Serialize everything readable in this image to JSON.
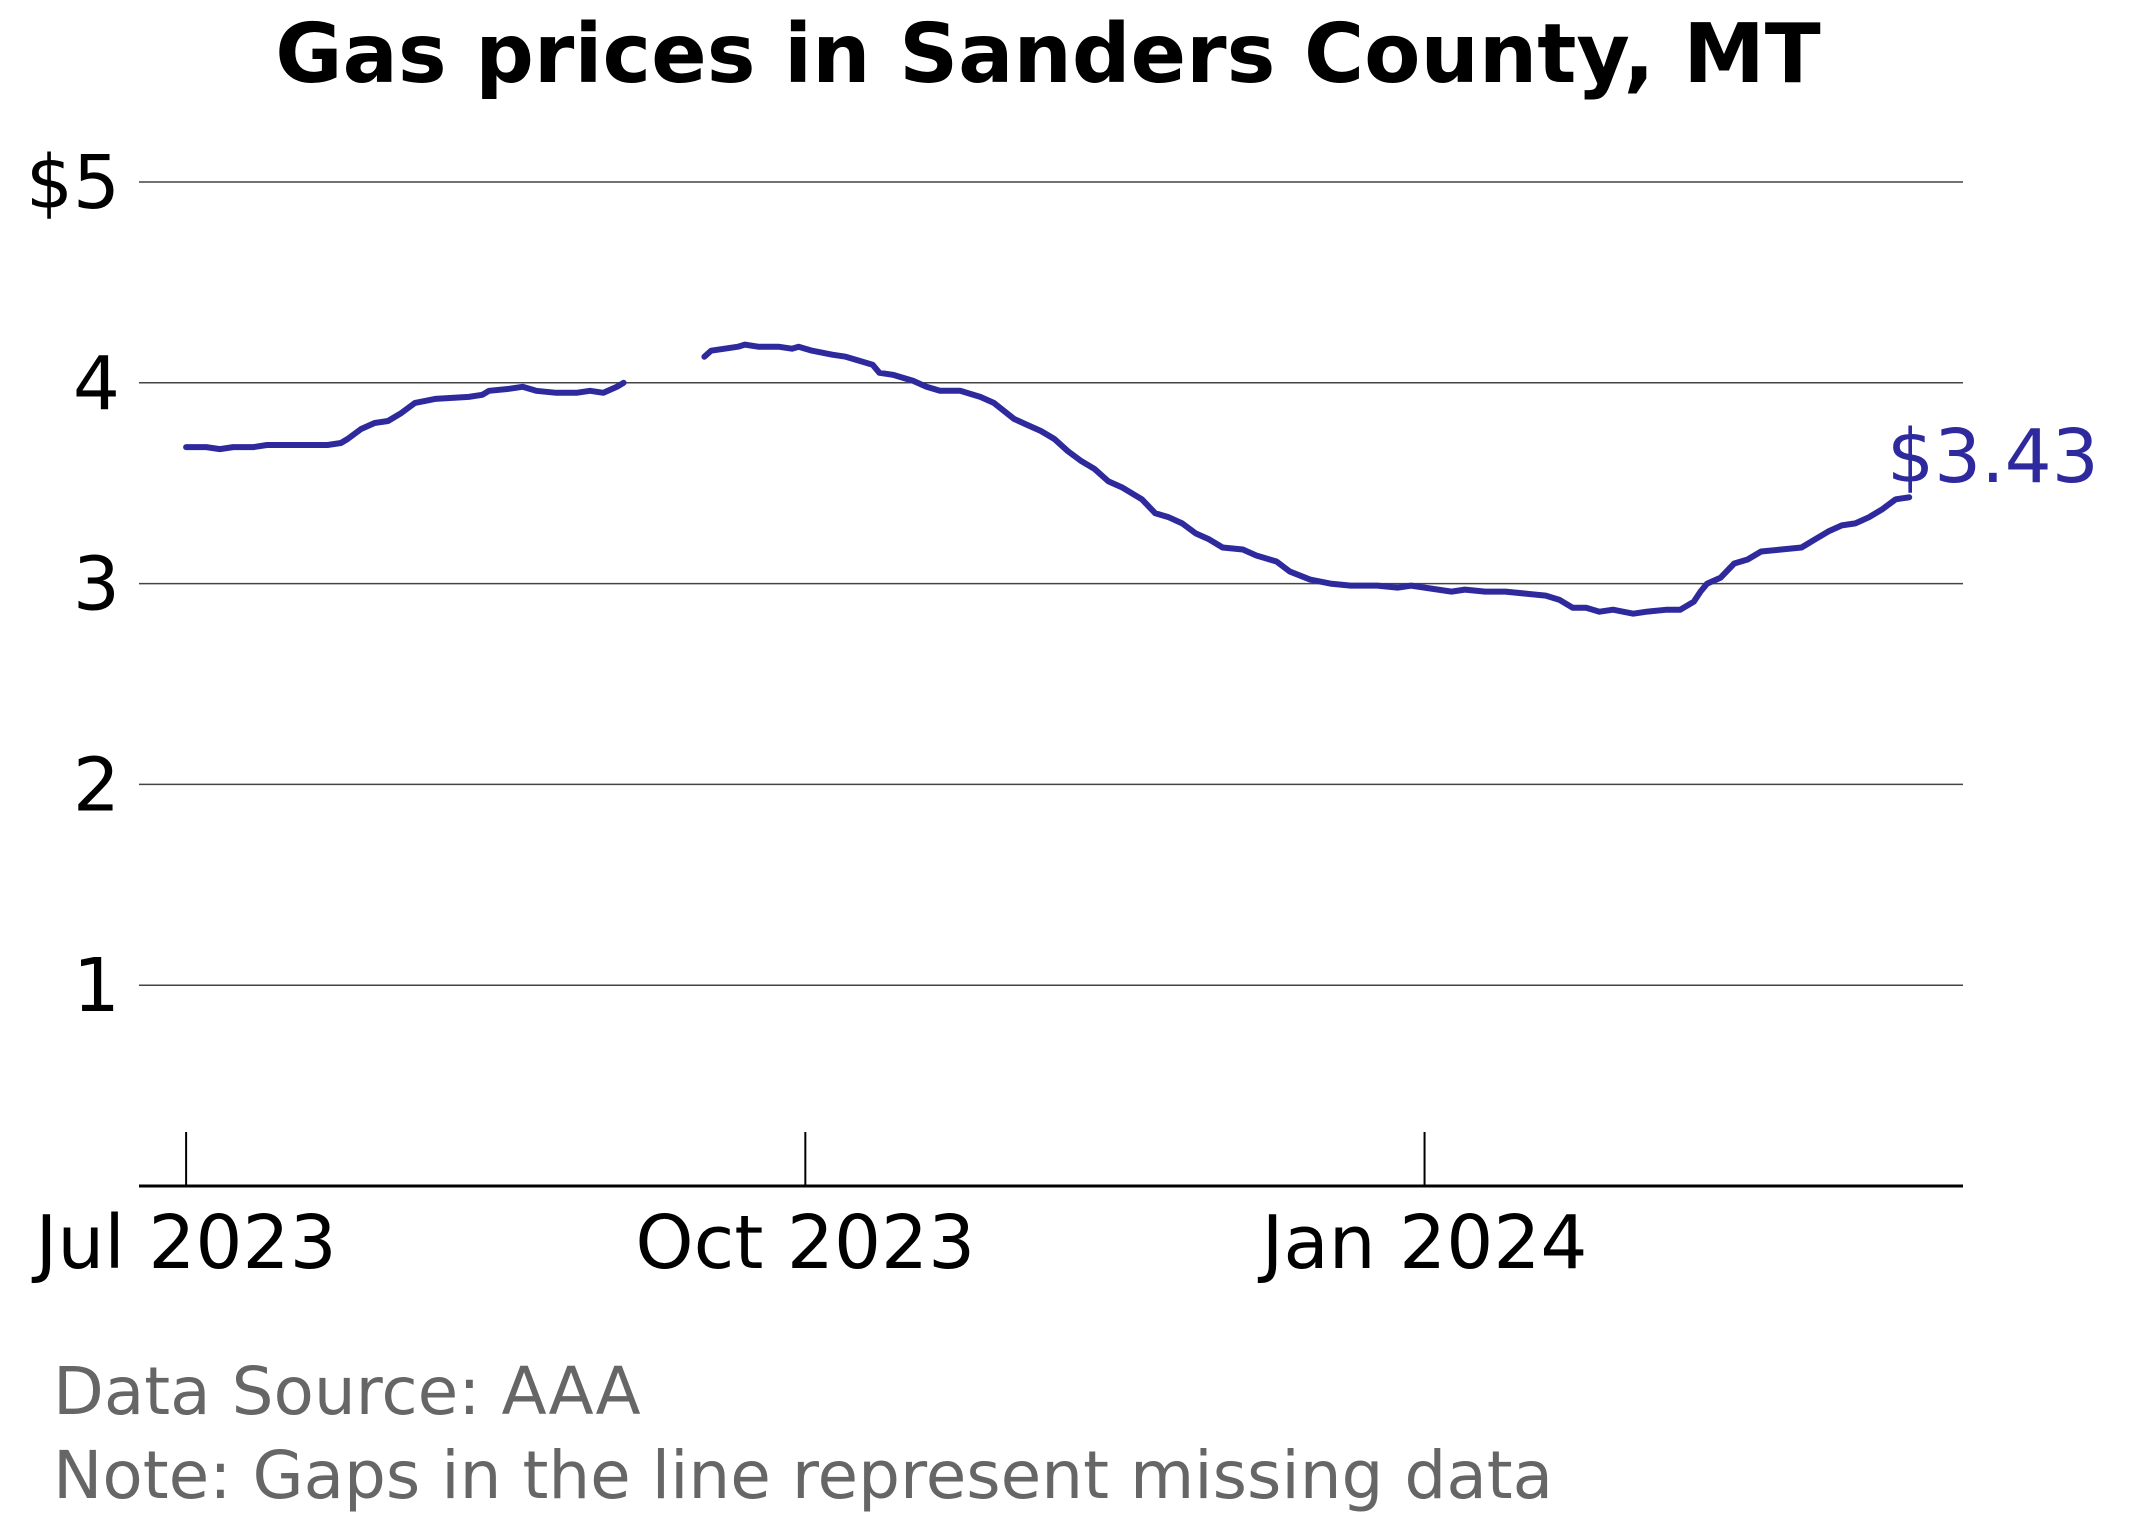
{
  "chart_data": {
    "type": "line",
    "title": "Gas prices in Sanders County, MT",
    "xlabel": "",
    "ylabel": "",
    "ylim": [
      0,
      5
    ],
    "xlim": [
      "2023-06-24",
      "2024-03-21"
    ],
    "y_ticks": [
      {
        "value": 1,
        "label": "1"
      },
      {
        "value": 2,
        "label": "2"
      },
      {
        "value": 3,
        "label": "3"
      },
      {
        "value": 4,
        "label": "4"
      },
      {
        "value": 5,
        "label": "$5"
      }
    ],
    "x_ticks": [
      {
        "date": "2023-07-01",
        "label": "Jul 2023"
      },
      {
        "date": "2023-10-01",
        "label": "Oct 2023"
      },
      {
        "date": "2024-01-01",
        "label": "Jan 2024"
      }
    ],
    "grid": "horizontal",
    "end_label": "$3.43",
    "notes": [
      "Data Source: AAA",
      "Note: Gaps in the line represent missing data"
    ],
    "colors": {
      "line": "#2e2a9e",
      "grid": "#444444",
      "axis": "#000000",
      "note": "#666666"
    },
    "series": [
      {
        "segments": [
          [
            [
              "2023-07-01",
              3.68
            ],
            [
              "2023-07-04",
              3.68
            ],
            [
              "2023-07-06",
              3.67
            ],
            [
              "2023-07-08",
              3.68
            ],
            [
              "2023-07-11",
              3.68
            ],
            [
              "2023-07-13",
              3.69
            ],
            [
              "2023-07-16",
              3.69
            ],
            [
              "2023-07-19",
              3.69
            ],
            [
              "2023-07-22",
              3.69
            ],
            [
              "2023-07-24",
              3.7
            ],
            [
              "2023-07-25",
              3.72
            ],
            [
              "2023-07-27",
              3.77
            ],
            [
              "2023-07-29",
              3.8
            ],
            [
              "2023-07-31",
              3.81
            ],
            [
              "2023-08-02",
              3.85
            ],
            [
              "2023-08-04",
              3.9
            ],
            [
              "2023-08-07",
              3.92
            ],
            [
              "2023-08-12",
              3.93
            ],
            [
              "2023-08-14",
              3.94
            ],
            [
              "2023-08-15",
              3.96
            ],
            [
              "2023-08-18",
              3.97
            ],
            [
              "2023-08-20",
              3.98
            ],
            [
              "2023-08-22",
              3.96
            ],
            [
              "2023-08-25",
              3.95
            ],
            [
              "2023-08-28",
              3.95
            ],
            [
              "2023-08-30",
              3.96
            ],
            [
              "2023-09-01",
              3.95
            ],
            [
              "2023-09-03",
              3.98
            ],
            [
              "2023-09-04",
              4.0
            ]
          ],
          [
            [
              "2023-09-16",
              4.13
            ],
            [
              "2023-09-17",
              4.16
            ],
            [
              "2023-09-19",
              4.17
            ],
            [
              "2023-09-21",
              4.18
            ],
            [
              "2023-09-22",
              4.19
            ],
            [
              "2023-09-24",
              4.18
            ],
            [
              "2023-09-27",
              4.18
            ],
            [
              "2023-09-29",
              4.17
            ],
            [
              "2023-09-30",
              4.18
            ],
            [
              "2023-10-02",
              4.16
            ],
            [
              "2023-10-05",
              4.14
            ],
            [
              "2023-10-07",
              4.13
            ],
            [
              "2023-10-09",
              4.11
            ],
            [
              "2023-10-11",
              4.09
            ],
            [
              "2023-10-12",
              4.05
            ],
            [
              "2023-10-14",
              4.04
            ],
            [
              "2023-10-17",
              4.01
            ],
            [
              "2023-10-19",
              3.98
            ],
            [
              "2023-10-21",
              3.96
            ],
            [
              "2023-10-24",
              3.96
            ],
            [
              "2023-10-27",
              3.93
            ],
            [
              "2023-10-29",
              3.9
            ],
            [
              "2023-11-01",
              3.82
            ],
            [
              "2023-11-03",
              3.79
            ],
            [
              "2023-11-05",
              3.76
            ],
            [
              "2023-11-07",
              3.72
            ],
            [
              "2023-11-09",
              3.66
            ],
            [
              "2023-11-11",
              3.61
            ],
            [
              "2023-11-13",
              3.57
            ],
            [
              "2023-11-15",
              3.51
            ],
            [
              "2023-11-17",
              3.48
            ],
            [
              "2023-11-20",
              3.42
            ],
            [
              "2023-11-22",
              3.35
            ],
            [
              "2023-11-24",
              3.33
            ],
            [
              "2023-11-26",
              3.3
            ],
            [
              "2023-11-28",
              3.25
            ],
            [
              "2023-11-30",
              3.22
            ],
            [
              "2023-12-02",
              3.18
            ],
            [
              "2023-12-05",
              3.17
            ],
            [
              "2023-12-07",
              3.14
            ],
            [
              "2023-12-10",
              3.11
            ],
            [
              "2023-12-12",
              3.06
            ],
            [
              "2023-12-15",
              3.02
            ],
            [
              "2023-12-18",
              3.0
            ],
            [
              "2023-12-21",
              2.99
            ],
            [
              "2023-12-25",
              2.99
            ],
            [
              "2023-12-28",
              2.98
            ],
            [
              "2023-12-30",
              2.99
            ],
            [
              "2024-01-01",
              2.98
            ],
            [
              "2024-01-03",
              2.97
            ],
            [
              "2024-01-05",
              2.96
            ],
            [
              "2024-01-07",
              2.97
            ],
            [
              "2024-01-10",
              2.96
            ],
            [
              "2024-01-13",
              2.96
            ],
            [
              "2024-01-16",
              2.95
            ],
            [
              "2024-01-19",
              2.94
            ],
            [
              "2024-01-21",
              2.92
            ],
            [
              "2024-01-23",
              2.88
            ],
            [
              "2024-01-25",
              2.88
            ],
            [
              "2024-01-27",
              2.86
            ],
            [
              "2024-01-29",
              2.87
            ],
            [
              "2024-02-01",
              2.85
            ],
            [
              "2024-02-03",
              2.86
            ],
            [
              "2024-02-06",
              2.87
            ],
            [
              "2024-02-08",
              2.87
            ],
            [
              "2024-02-10",
              2.91
            ],
            [
              "2024-02-11",
              2.96
            ],
            [
              "2024-02-12",
              3.0
            ],
            [
              "2024-02-14",
              3.03
            ],
            [
              "2024-02-16",
              3.1
            ],
            [
              "2024-02-18",
              3.12
            ],
            [
              "2024-02-20",
              3.16
            ],
            [
              "2024-02-23",
              3.17
            ],
            [
              "2024-02-26",
              3.18
            ],
            [
              "2024-02-28",
              3.22
            ],
            [
              "2024-03-01",
              3.26
            ],
            [
              "2024-03-03",
              3.29
            ],
            [
              "2024-03-05",
              3.3
            ],
            [
              "2024-03-07",
              3.33
            ],
            [
              "2024-03-09",
              3.37
            ],
            [
              "2024-03-11",
              3.42
            ],
            [
              "2024-03-13",
              3.43
            ]
          ]
        ]
      }
    ]
  }
}
